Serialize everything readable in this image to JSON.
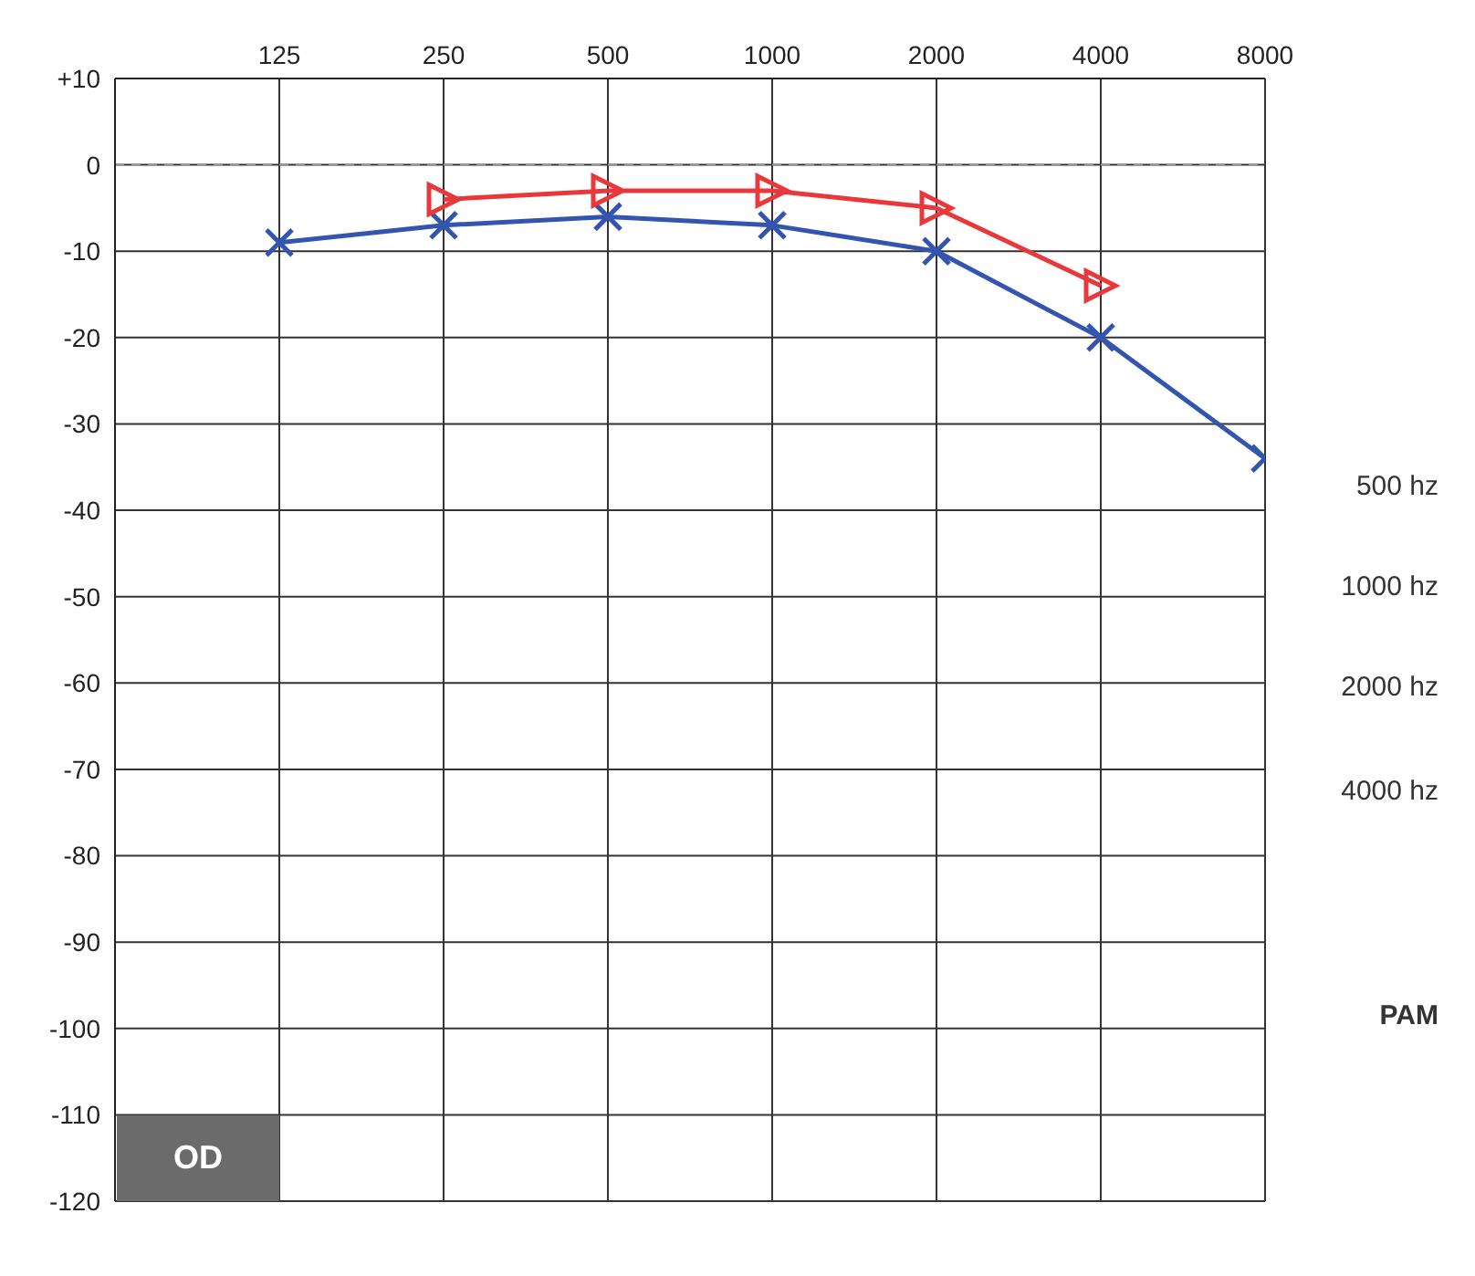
{
  "chart_data": {
    "type": "line",
    "x": [
      125,
      250,
      500,
      1000,
      2000,
      4000,
      8000
    ],
    "xlim": [
      62.5,
      8000
    ],
    "xticks": [
      125,
      250,
      500,
      1000,
      2000,
      4000,
      8000
    ],
    "log": "x",
    "ylim": [
      -120,
      10
    ],
    "yticks": [
      {
        "value": 10,
        "label": "+10"
      },
      0,
      -10,
      -20,
      -30,
      -40,
      -50,
      -60,
      -70,
      -80,
      -90,
      -100,
      -110,
      -120
    ],
    "series": [
      {
        "color": "#3355b0",
        "marker": "cross",
        "values": [
          -9,
          -7,
          -6,
          -7,
          -10,
          -20,
          -34
        ]
      },
      {
        "color": "#e8383c",
        "marker": "triangle",
        "values": [
          null,
          -4,
          -3,
          -3,
          -5,
          -14,
          null
        ]
      }
    ],
    "ref_lines": [
      {
        "axis": "y",
        "value": 0,
        "color": "#999999",
        "line_style": "dashed"
      }
    ],
    "grid": true,
    "legend": false,
    "annotations": [
      "OD",
      "500 hz",
      "1000 hz",
      "2000 hz",
      "4000 hz",
      "PAM"
    ]
  }
}
